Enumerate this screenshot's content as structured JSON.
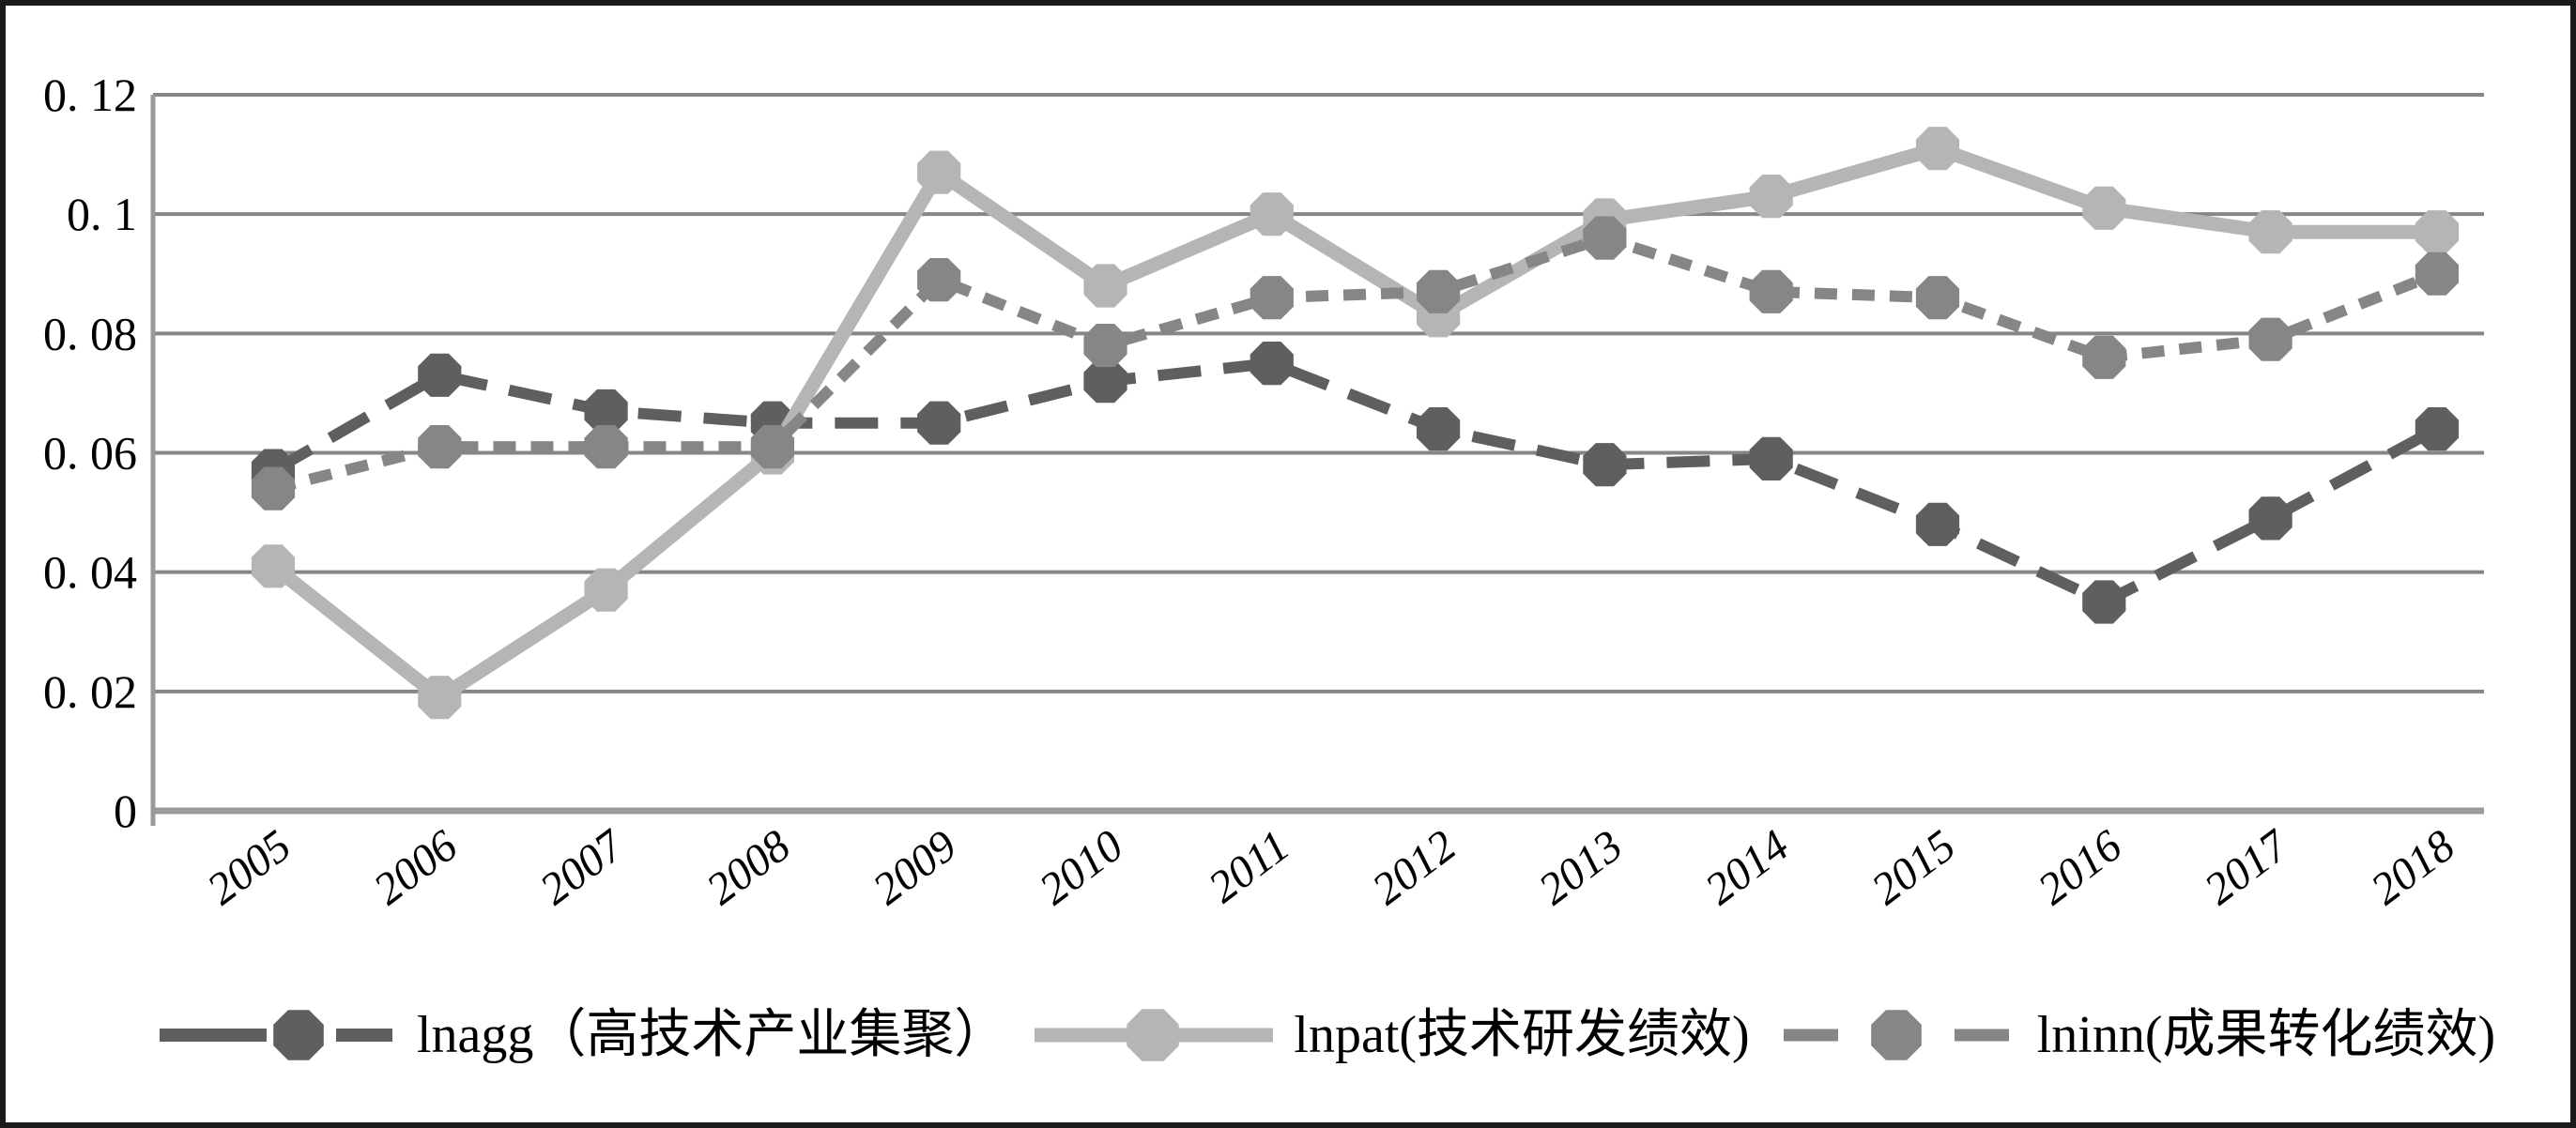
{
  "figure": {
    "background": "#ffffff",
    "border_color": "#1a1a1a"
  },
  "chart_data": {
    "type": "line",
    "title": "",
    "categories": [
      "2005",
      "2006",
      "2007",
      "2008",
      "2009",
      "2010",
      "2011",
      "2012",
      "2013",
      "2014",
      "2015",
      "2016",
      "2017",
      "2018"
    ],
    "series": [
      {
        "name": "lnagg",
        "label": "lnagg（高技术产业集聚）",
        "color": "#5f5f5f",
        "line_style": "long-dash",
        "marker": "octagon",
        "values": [
          0.057,
          0.073,
          0.067,
          0.065,
          0.065,
          0.072,
          0.075,
          0.064,
          0.058,
          0.059,
          0.048,
          0.035,
          0.049,
          0.064
        ]
      },
      {
        "name": "lnpat",
        "label": "lnpat(技术研发绩效)",
        "color": "#b5b5b5",
        "line_style": "solid",
        "marker": "octagon",
        "values": [
          0.041,
          0.019,
          0.037,
          0.06,
          0.107,
          0.088,
          0.1,
          0.083,
          0.099,
          0.103,
          0.111,
          0.101,
          0.097,
          0.097
        ]
      },
      {
        "name": "lninn",
        "label": "lninn(成果转化绩效)",
        "color": "#868686",
        "line_style": "short-dash",
        "marker": "octagon",
        "values": [
          0.054,
          0.061,
          0.061,
          0.061,
          0.089,
          0.078,
          0.086,
          0.087,
          0.096,
          0.087,
          0.086,
          0.076,
          0.079,
          0.09
        ]
      }
    ],
    "y_axis": {
      "min": 0,
      "max": 0.12,
      "tick_step": 0.02,
      "tick_labels": [
        "0",
        "0. 02",
        "0. 04",
        "0. 06",
        "0. 08",
        "0. 1",
        "0. 12"
      ]
    },
    "x_axis": {
      "label": "",
      "tick_rotation_deg": -37
    },
    "grid": true,
    "legend_position": "bottom",
    "gridline_color": "#868686",
    "axis_color": "#9a9a9a",
    "text_color": "#000000"
  }
}
